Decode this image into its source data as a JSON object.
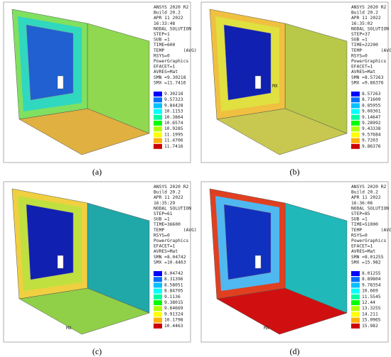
{
  "panels": [
    {
      "caption": "(a)",
      "header": [
        "ANSYS 2020 R2",
        "Build 20.2",
        "APR 11 2022",
        "16:33:48",
        "NODAL SOLUTION",
        "STEP=1",
        "SUB =1",
        "TIME=600",
        "TEMP       (AVG)",
        "RSYS=0",
        "PowerGraphics",
        "EFACET=1",
        "AVRES=Mat",
        "SMN =9.30218",
        "SMX =11.7416"
      ],
      "legend": [
        "9.30218",
        "9.57323",
        "9.84428",
        "10.1153",
        "10.3864",
        "10.6574",
        "10.9285",
        "11.1995",
        "11.4706",
        "11.7416"
      ]
    },
    {
      "caption": "(b)",
      "mx": "MX",
      "header": [
        "ANSYS 2020 R2",
        "Build 20.2",
        "APR 11 2022",
        "16:35:02",
        "NODAL SOLUTION",
        "STEP=37",
        "SUB =1",
        "TIME=22200",
        "TEMP       (AVG)",
        "RSYS=0",
        "PowerGraphics",
        "EFACET=1",
        "AVRES=Mat",
        "SMN =8.57263",
        "SMX =9.86376"
      ],
      "legend": [
        "8.57263",
        "8.71609",
        "8.85955",
        "9.00301",
        "9.14647",
        "9.28992",
        "9.43338",
        "9.57684",
        "9.7203",
        "9.86376"
      ]
    },
    {
      "caption": "(c)",
      "mx": "MX",
      "header": [
        "ANSYS 2020 R2",
        "Build 20.2",
        "APR 11 2022",
        "16:35:29",
        "NODAL SOLUTION",
        "STEP=61",
        "SUB =1",
        "TIME=36600",
        "TEMP       (AVG)",
        "RSYS=0",
        "PowerGraphics",
        "EFACET=1",
        "AVRES=Mat",
        "SMN =8.04742",
        "SMX =10.4463"
      ],
      "legend": [
        "8.04742",
        "8.31396",
        "8.58051",
        "8.84705",
        "9.1136",
        "9.38015",
        "9.64669",
        "9.91324",
        "10.1798",
        "10.4463"
      ]
    },
    {
      "caption": "(d)",
      "mx": "MX",
      "header": [
        "ANSYS 2020 R2",
        "Build 20.2",
        "APR 11 2022",
        "16:36:06",
        "NODAL SOLUTION",
        "STEP=85",
        "SUB =1",
        "TIME=51000",
        "TEMP       (AVG)",
        "RSYS=0",
        "PowerGraphics",
        "EFACET=1",
        "AVRES=Mat",
        "SMN =8.01255",
        "SMX =15.982"
      ],
      "legend": [
        "8.01255",
        "8.89804",
        "9.78354",
        "10.669",
        "11.5545",
        "12.44",
        "13.3255",
        "14.211",
        "15.0965",
        "15.982"
      ]
    }
  ]
}
